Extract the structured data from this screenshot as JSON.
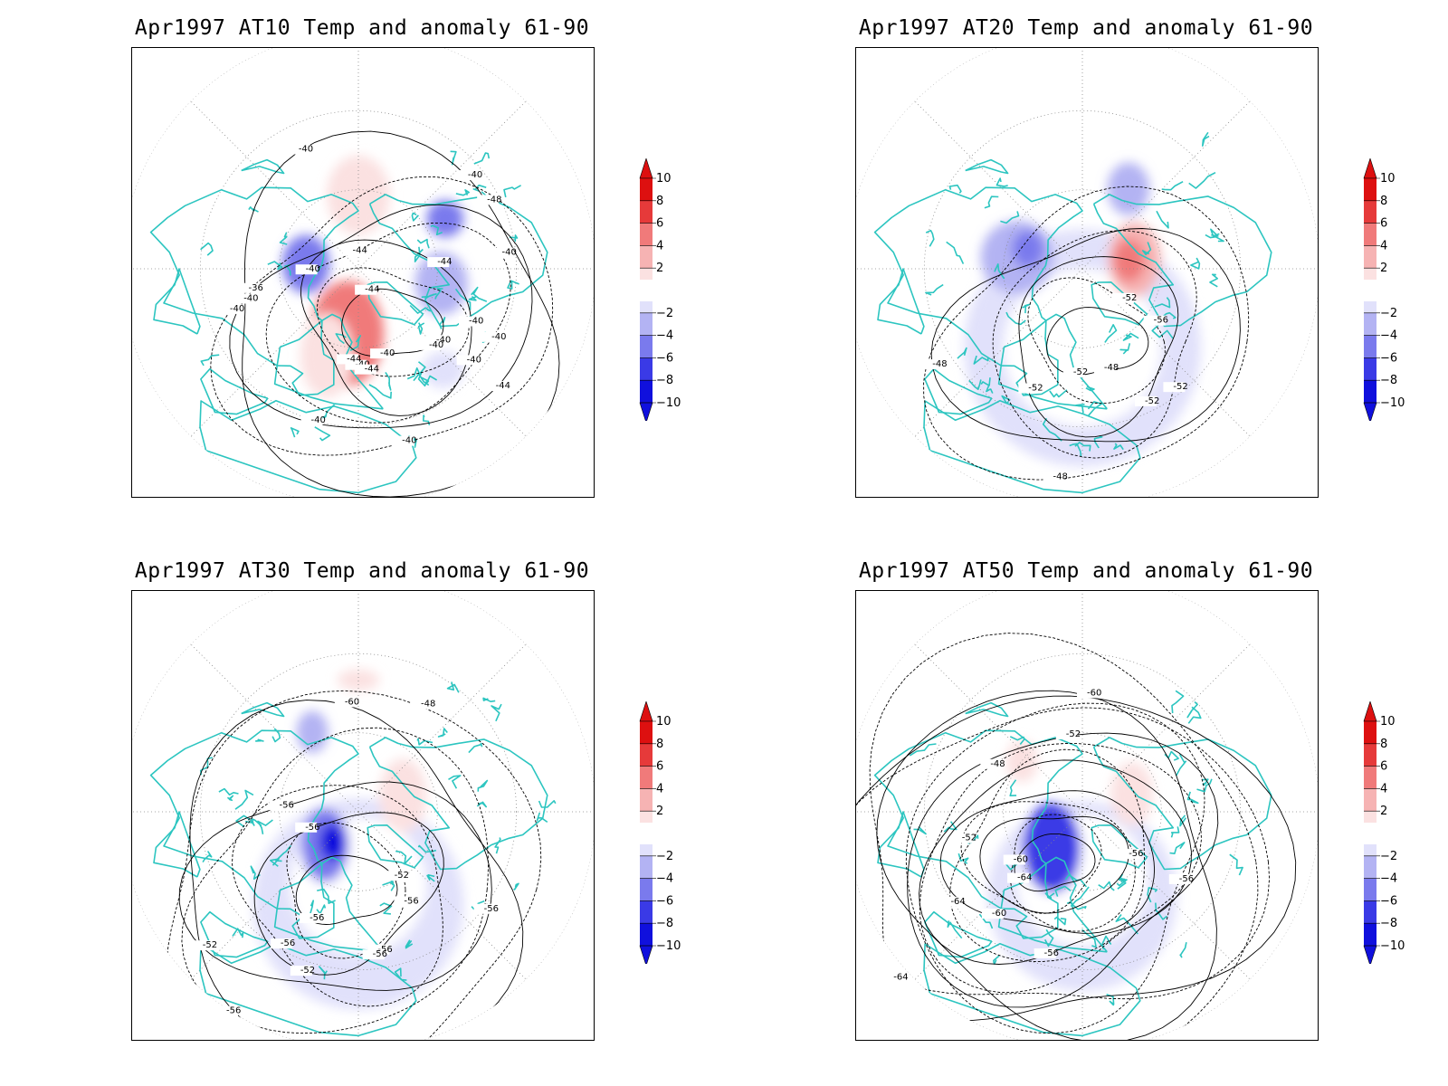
{
  "colors": {
    "coast": "#2cc5c0",
    "contour": "#000000",
    "grid": "#8a8a8a",
    "warm": [
      "#fbe1e1",
      "#f6b3b3",
      "#f07a7a",
      "#e63a3a",
      "#dd1010"
    ],
    "cold": [
      "#e1e1fb",
      "#b3b3f3",
      "#7a7aed",
      "#3a3ae6",
      "#1010dd"
    ]
  },
  "legend": {
    "levels": [
      "10",
      "8",
      "6",
      "4",
      "2",
      "−2",
      "−4",
      "−6",
      "−8",
      "−10"
    ]
  },
  "panels": [
    {
      "title": "Apr1997 AT10 Temp and anomaly 61-90",
      "contour_labels": [
        "-40",
        "-40",
        "-40",
        "-40",
        "-40",
        "-40",
        "-40",
        "-40",
        "-40",
        "-40",
        "-40",
        "-40",
        "-40",
        "-40",
        "-44",
        "-44",
        "-44",
        "-44",
        "-44",
        "-36",
        "-48",
        "-40",
        "-44"
      ],
      "anomalies": [
        {
          "lon": 10,
          "lat": 72,
          "rx": 9,
          "ry": 13,
          "level": 5
        },
        {
          "lon": 10,
          "lat": 65,
          "rx": 14,
          "ry": 20,
          "level": 3
        },
        {
          "lon": 20,
          "lat": 55,
          "rx": 10,
          "ry": 16,
          "level": 1
        },
        {
          "lon": 180,
          "lat": 62,
          "rx": 12,
          "ry": 15,
          "level": 1
        },
        {
          "lon": -80,
          "lat": 58,
          "rx": 10,
          "ry": 12,
          "level": -2
        },
        {
          "lon": 95,
          "lat": 70,
          "rx": 9,
          "ry": 11,
          "level": -3
        },
        {
          "lon": -120,
          "lat": 52,
          "rx": 7,
          "ry": 7,
          "level": -3
        },
        {
          "lon": -40,
          "lat": 40,
          "rx": 8,
          "ry": 7,
          "level": -1
        }
      ]
    },
    {
      "title": "Apr1997 AT20 Temp and anomaly 61-90",
      "contour_labels": [
        "-52",
        "-52",
        "-52",
        "-52",
        "-48",
        "-48",
        "-48",
        "-56",
        "-52"
      ],
      "anomalies": [
        {
          "lon": 0,
          "lat": 60,
          "rx": 45,
          "ry": 45,
          "level": -1
        },
        {
          "lon": 0,
          "lat": 60,
          "rx": 30,
          "ry": 30,
          "level": 0
        },
        {
          "lon": -100,
          "lat": 70,
          "rx": 10,
          "ry": 14,
          "level": 2
        },
        {
          "lon": -100,
          "lat": 72,
          "rx": 6,
          "ry": 8,
          "level": 3
        },
        {
          "lon": 100,
          "lat": 65,
          "rx": 14,
          "ry": 14,
          "level": -2
        },
        {
          "lon": 110,
          "lat": 68,
          "rx": 6,
          "ry": 7,
          "level": -3
        },
        {
          "lon": -150,
          "lat": 55,
          "rx": 8,
          "ry": 10,
          "level": -2
        }
      ]
    },
    {
      "title": "Apr1997 AT30 Temp and anomaly 61-90",
      "contour_labels": [
        "-56",
        "-56",
        "-56",
        "-52",
        "-52",
        "-56",
        "-60",
        "-48",
        "-52",
        "-56",
        "-56",
        "-56",
        "-56",
        "-56"
      ],
      "anomalies": [
        {
          "lon": 0,
          "lat": 55,
          "rx": 40,
          "ry": 40,
          "level": -1
        },
        {
          "lon": 0,
          "lat": 62,
          "rx": 26,
          "ry": 26,
          "level": 0
        },
        {
          "lon": -110,
          "lat": 72,
          "rx": 9,
          "ry": 14,
          "level": 1
        },
        {
          "lon": 45,
          "lat": 72,
          "rx": 9,
          "ry": 14,
          "level": -3
        },
        {
          "lon": 40,
          "lat": 75,
          "rx": 5,
          "ry": 7,
          "level": -5
        },
        {
          "lon": 150,
          "lat": 55,
          "rx": 6,
          "ry": 8,
          "level": -2
        },
        {
          "lon": -180,
          "lat": 40,
          "rx": 8,
          "ry": 4,
          "level": 1
        }
      ]
    },
    {
      "title": "Apr1997 AT50 Temp and anomaly 61-90",
      "contour_labels": [
        "-64",
        "-60",
        "-56",
        "-52",
        "-60",
        "-64",
        "-56",
        "-48",
        "-52",
        "-56",
        "-60",
        "-64"
      ],
      "anomalies": [
        {
          "lon": 0,
          "lat": 58,
          "rx": 36,
          "ry": 36,
          "level": -1
        },
        {
          "lon": 0,
          "lat": 64,
          "rx": 25,
          "ry": 25,
          "level": 0
        },
        {
          "lon": 40,
          "lat": 75,
          "rx": 8,
          "ry": 14,
          "level": -5
        },
        {
          "lon": 40,
          "lat": 72,
          "rx": 11,
          "ry": 17,
          "level": -4
        },
        {
          "lon": -110,
          "lat": 70,
          "rx": 8,
          "ry": 12,
          "level": 1
        },
        {
          "lon": 130,
          "lat": 60,
          "rx": 6,
          "ry": 8,
          "level": 1
        }
      ]
    }
  ]
}
